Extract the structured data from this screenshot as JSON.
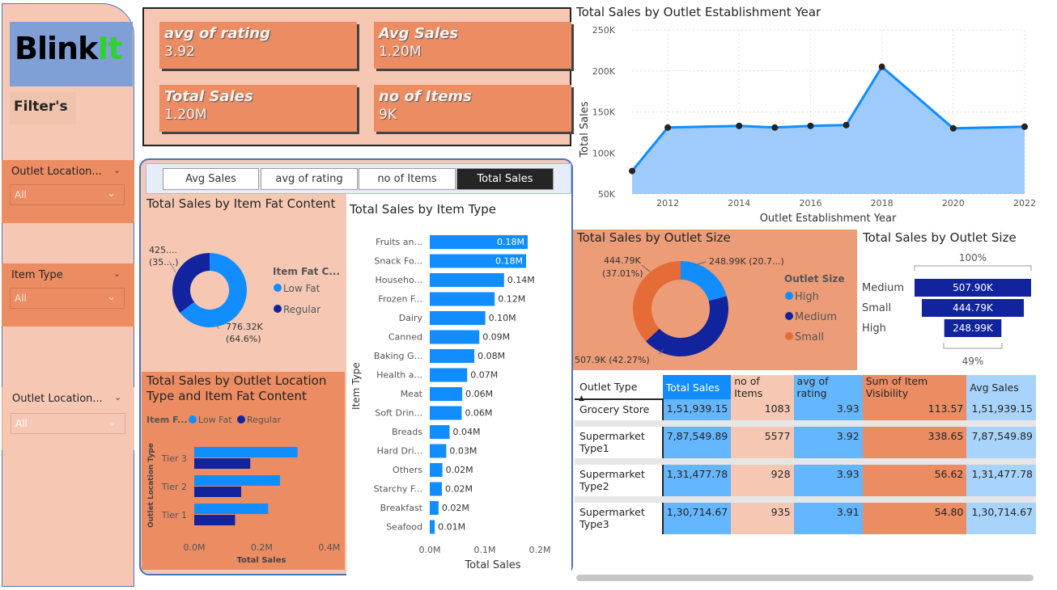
{
  "logo": {
    "part1": "Blink",
    "part2": "It"
  },
  "sidebar": {
    "title": "Filter's",
    "filters": [
      {
        "label": "Outlet Location...",
        "value": "All"
      },
      {
        "label": "Item Type",
        "value": "All"
      },
      {
        "label": "Outlet Location...",
        "value": "All"
      }
    ]
  },
  "kpis": [
    {
      "label": "avg of rating",
      "value": "3.92"
    },
    {
      "label": "Avg Sales",
      "value": "1.20M"
    },
    {
      "label": "Total Sales",
      "value": "1.20M"
    },
    {
      "label": "no of Items",
      "value": "9K"
    }
  ],
  "tabs": [
    {
      "label": "Avg Sales",
      "active": false
    },
    {
      "label": "avg of rating",
      "active": false
    },
    {
      "label": "no of Items",
      "active": false
    },
    {
      "label": "Total Sales",
      "active": true
    }
  ],
  "colors": {
    "accent": "#ec8c63",
    "light": "#f6c8b4",
    "blue": "#118dff",
    "navy": "#12239e",
    "orange": "#e66c37"
  },
  "chart_data": [
    {
      "id": "fat",
      "type": "pie",
      "title": "Total Sales by Item Fat Content",
      "legend_title": "Item Fat C...",
      "slices": [
        {
          "name": "Low Fat",
          "value": 776.32,
          "label": "776.32K",
          "pct": "(64.6%)",
          "color": "#118dff"
        },
        {
          "name": "Regular",
          "value": 425.36,
          "label": "425....",
          "pct": "(35....)",
          "color": "#12239e"
        }
      ]
    },
    {
      "id": "itemtype",
      "type": "bar",
      "title": "Total Sales by Item Type",
      "xlabel": "Total Sales",
      "ylabel": "Item Type",
      "xlim": [
        0,
        0.2
      ],
      "xticks": [
        "0.0M",
        "0.1M",
        "0.2M"
      ],
      "categories": [
        "Fruits an...",
        "Snack Fo...",
        "Househo...",
        "Frozen F...",
        "Dairy",
        "Canned",
        "Baking G...",
        "Health a...",
        "Meat",
        "Soft Drin...",
        "Breads",
        "Hard Dri...",
        "Others",
        "Starchy F...",
        "Breakfast",
        "Seafood"
      ],
      "values": [
        0.178,
        0.175,
        0.135,
        0.118,
        0.101,
        0.09,
        0.081,
        0.068,
        0.059,
        0.058,
        0.036,
        0.03,
        0.023,
        0.022,
        0.016,
        0.009
      ],
      "labels": [
        "0.18M",
        "0.18M",
        "0.14M",
        "0.12M",
        "0.10M",
        "0.09M",
        "0.08M",
        "0.07M",
        "0.06M",
        "0.06M",
        "0.04M",
        "0.03M",
        "0.02M",
        "0.02M",
        "0.02M",
        "0.01M"
      ]
    },
    {
      "id": "tier",
      "type": "bar",
      "title": "Total Sales by Outlet Location Type and Item Fat Content",
      "title_lines": [
        "Total Sales by Outlet Location",
        "Type and Item Fat Content"
      ],
      "legend_title": "Item F...",
      "xlabel": "Total Sales",
      "ylabel": "Outlet Location Type",
      "xlim": [
        0,
        0.4
      ],
      "xticks": [
        "0.0M",
        "0.2M",
        "0.4M"
      ],
      "categories": [
        "Tier 3",
        "Tier 2",
        "Tier 1"
      ],
      "series": [
        {
          "name": "Low Fat",
          "values": [
            0.306,
            0.254,
            0.219
          ],
          "color": "#118dff"
        },
        {
          "name": "Regular",
          "values": [
            0.166,
            0.139,
            0.121
          ],
          "color": "#12239e"
        }
      ]
    },
    {
      "id": "year",
      "type": "area",
      "title": "Total Sales by Outlet Establishment Year",
      "xlabel": "Outlet Establishment Year",
      "ylabel": "Total Sales",
      "xlim": [
        2011,
        2022
      ],
      "ylim": [
        50,
        250
      ],
      "yticks": [
        "50K",
        "100K",
        "150K",
        "200K",
        "250K"
      ],
      "xticks": [
        "2012",
        "2014",
        "2016",
        "2018",
        "2020",
        "2022"
      ],
      "x": [
        2011,
        2012,
        2014,
        2015,
        2016,
        2017,
        2018,
        2020,
        2022
      ],
      "y": [
        78,
        131,
        133,
        131,
        133,
        134,
        205,
        130,
        132
      ],
      "grid": true
    },
    {
      "id": "size",
      "type": "pie",
      "title": "Total Sales by Outlet Size",
      "legend_title": "Outlet Size",
      "slices": [
        {
          "name": "High",
          "value": 248.99,
          "label": "248.99K (20.7...)",
          "color": "#118dff"
        },
        {
          "name": "Medium",
          "value": 507.9,
          "label": "507.9K (42.27%)",
          "color": "#12239e"
        },
        {
          "name": "Small",
          "value": 444.79,
          "label": "444.79K (37.01%)",
          "color": "#e66c37"
        }
      ]
    },
    {
      "id": "funnel",
      "type": "bar",
      "title": "Total Sales by Outlet Size",
      "top_pct": "100%",
      "bottom_pct": "49%",
      "categories": [
        "Medium",
        "Small",
        "High"
      ],
      "values": [
        507.9,
        444.79,
        248.99
      ],
      "labels": [
        "507.90K",
        "444.79K",
        "248.99K"
      ]
    },
    {
      "id": "outlet_table",
      "type": "table",
      "columns": [
        "Outlet Type",
        "Total Sales",
        "no of Items",
        "avg of rating",
        "Sum of Item Visibility",
        "Avg Sales"
      ],
      "rows": [
        {
          "type": [
            "Grocery Store"
          ],
          "total": "1,51,939.15",
          "items": "1083",
          "rating": "3.93",
          "vis": "113.57",
          "avg": "1,51,939.15"
        },
        {
          "type": [
            "Supermarket",
            "Type1"
          ],
          "total": "7,87,549.89",
          "items": "5577",
          "rating": "3.92",
          "vis": "338.65",
          "avg": "7,87,549.89"
        },
        {
          "type": [
            "Supermarket",
            "Type2"
          ],
          "total": "1,31,477.78",
          "items": "928",
          "rating": "3.93",
          "vis": "56.62",
          "avg": "1,31,477.78"
        },
        {
          "type": [
            "Supermarket",
            "Type3"
          ],
          "total": "1,30,714.67",
          "items": "935",
          "rating": "3.91",
          "vis": "54.80",
          "avg": "1,30,714.67"
        }
      ]
    }
  ]
}
